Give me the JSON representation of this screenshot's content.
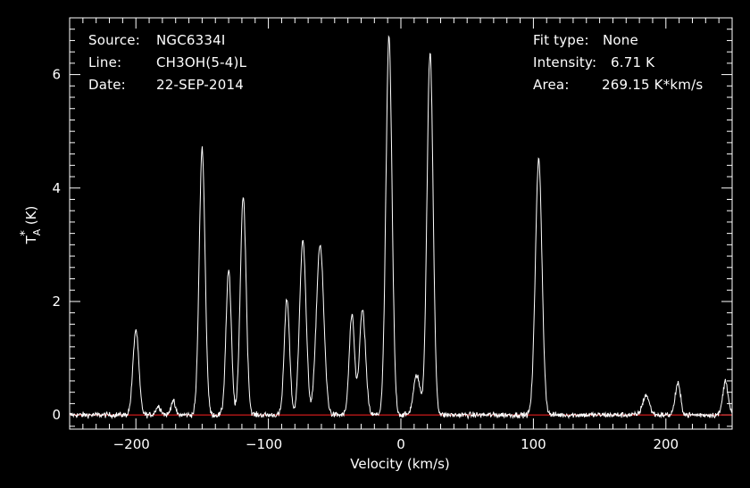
{
  "header": {
    "left": [
      {
        "key": "Source:",
        "value": "NGC6334I"
      },
      {
        "key": "Line:",
        "value": "CH3OH(5-4)L"
      },
      {
        "key": "Date:",
        "value": "22-SEP-2014"
      }
    ],
    "right": [
      {
        "key": "Fit type:",
        "value": "None"
      },
      {
        "key": "Intensity:",
        "value": "6.71 K"
      },
      {
        "key": "Area:",
        "value": "269.15 K*km/s"
      }
    ]
  },
  "colors": {
    "background": "#000000",
    "spectrum": "#ffffff",
    "baseline": "#ff2020",
    "axes": "#ffffff"
  },
  "chart_data": {
    "type": "line",
    "xlabel": "Velocity (km/s)",
    "ylabel_main": "T",
    "ylabel_sup": "*",
    "ylabel_sub": "A",
    "ylabel_unit": "(K)",
    "xlim": [
      -250,
      250
    ],
    "ylim": [
      -0.25,
      7.0
    ],
    "xticks": [
      -200,
      -100,
      0,
      100,
      200
    ],
    "yticks": [
      0,
      2,
      4,
      6
    ],
    "baseline": 0,
    "noise_rms": 0.05,
    "peaks": [
      {
        "center": -200,
        "amplitude": 1.5,
        "width": 2.2
      },
      {
        "center": -183,
        "amplitude": 0.15,
        "width": 2.0
      },
      {
        "center": -172,
        "amplitude": 0.25,
        "width": 1.6
      },
      {
        "center": -150,
        "amplitude": 4.7,
        "width": 2.2
      },
      {
        "center": -130,
        "amplitude": 2.55,
        "width": 2.0
      },
      {
        "center": -119,
        "amplitude": 3.85,
        "width": 2.2
      },
      {
        "center": -86,
        "amplitude": 2.05,
        "width": 2.0
      },
      {
        "center": -74,
        "amplitude": 3.1,
        "width": 2.4
      },
      {
        "center": -61,
        "amplitude": 3.0,
        "width": 2.8
      },
      {
        "center": -37,
        "amplitude": 1.75,
        "width": 2.0
      },
      {
        "center": -29,
        "amplitude": 1.85,
        "width": 2.3
      },
      {
        "center": -9,
        "amplitude": 6.65,
        "width": 2.3
      },
      {
        "center": 12,
        "amplitude": 0.7,
        "width": 2.5
      },
      {
        "center": 22,
        "amplitude": 6.4,
        "width": 2.3
      },
      {
        "center": 104,
        "amplitude": 4.5,
        "width": 2.5
      },
      {
        "center": 185,
        "amplitude": 0.35,
        "width": 2.5
      },
      {
        "center": 209,
        "amplitude": 0.55,
        "width": 2.0
      },
      {
        "center": 245,
        "amplitude": 0.6,
        "width": 2.0
      }
    ]
  }
}
